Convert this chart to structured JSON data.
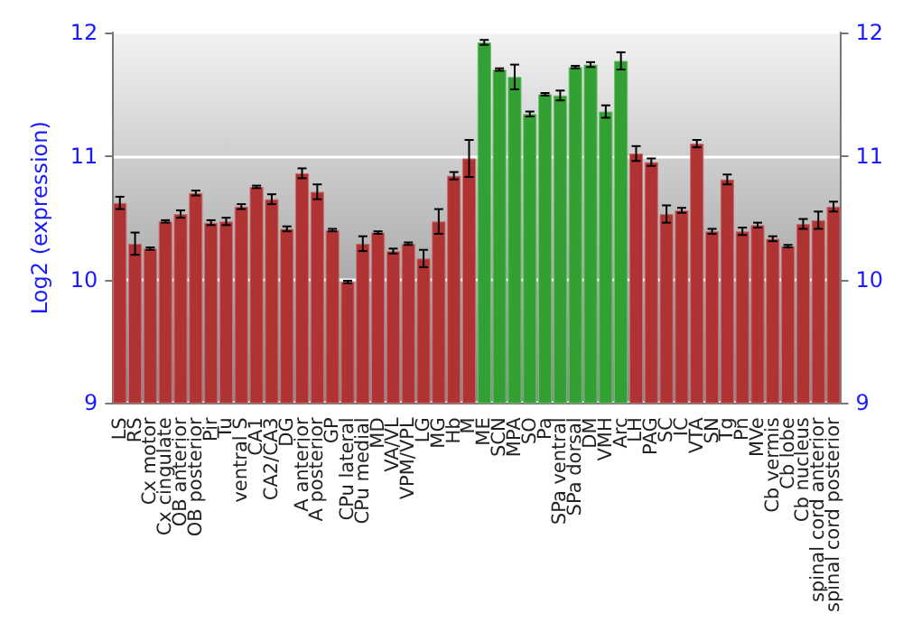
{
  "chart_data": {
    "type": "bar",
    "ylabel": "Log2 (expression)",
    "categories": [
      "LS",
      "RS",
      "Cx motor",
      "Cx cingulate",
      "OB anterior",
      "OB posterior",
      "Pir",
      "Tu",
      "ventral S",
      "CA1",
      "CA2/CA3",
      "DG",
      "A anterior",
      "A posterior",
      "GP",
      "CPu lateral",
      "CPu medial",
      "MD",
      "VA/VL",
      "VPM/VPL",
      "LG",
      "MG",
      "Hb",
      "M",
      "ME",
      "SCN",
      "MPA",
      "SO",
      "Pa",
      "SPa ventral",
      "SPa dorsal",
      "DM",
      "VMH",
      "Arc",
      "LH",
      "PAG",
      "SC",
      "IC",
      "VTA",
      "SN",
      "Tg",
      "Pn",
      "MVe",
      "Cb vermis",
      "Cb lobe",
      "Cb nucleus",
      "spinal cord anterior",
      "spinal cord posterior"
    ],
    "values": [
      10.62,
      10.29,
      10.25,
      10.47,
      10.53,
      10.7,
      10.46,
      10.47,
      10.59,
      10.75,
      10.65,
      10.41,
      10.86,
      10.71,
      10.4,
      9.98,
      10.29,
      10.38,
      10.23,
      10.29,
      10.17,
      10.47,
      10.84,
      10.98,
      11.92,
      11.7,
      11.64,
      11.34,
      11.5,
      11.49,
      11.72,
      11.74,
      11.36,
      11.77,
      11.02,
      10.95,
      10.53,
      10.56,
      11.1,
      10.39,
      10.81,
      10.39,
      10.44,
      10.33,
      10.27,
      10.45,
      10.48,
      10.59
    ],
    "errors": [
      0.05,
      0.09,
      0.01,
      0.01,
      0.03,
      0.02,
      0.02,
      0.03,
      0.02,
      0.01,
      0.04,
      0.02,
      0.04,
      0.06,
      0.01,
      0.01,
      0.06,
      0.01,
      0.02,
      0.01,
      0.07,
      0.1,
      0.03,
      0.15,
      0.02,
      0.01,
      0.1,
      0.02,
      0.01,
      0.04,
      0.01,
      0.02,
      0.05,
      0.07,
      0.06,
      0.03,
      0.07,
      0.02,
      0.03,
      0.02,
      0.04,
      0.03,
      0.02,
      0.02,
      0.01,
      0.04,
      0.07,
      0.04
    ],
    "colors": [
      "#b03333",
      "#b03333",
      "#b03333",
      "#b03333",
      "#b03333",
      "#b03333",
      "#b03333",
      "#b03333",
      "#b03333",
      "#b03333",
      "#b03333",
      "#b03333",
      "#b03333",
      "#b03333",
      "#b03333",
      "#b03333",
      "#b03333",
      "#b03333",
      "#b03333",
      "#b03333",
      "#b03333",
      "#b03333",
      "#b03333",
      "#b03333",
      "#33a033",
      "#33a033",
      "#33a033",
      "#33a033",
      "#33a033",
      "#33a033",
      "#33a033",
      "#33a033",
      "#33a033",
      "#33a033",
      "#b03333",
      "#b03333",
      "#b03333",
      "#b03333",
      "#b03333",
      "#b03333",
      "#b03333",
      "#b03333",
      "#b03333",
      "#b03333",
      "#b03333",
      "#b03333",
      "#b03333",
      "#b03333"
    ],
    "ylim": [
      9,
      12
    ],
    "yticks": [
      9,
      10,
      11,
      12
    ],
    "y2lim": [
      9,
      12
    ],
    "y2ticks": [
      9,
      10,
      11,
      12
    ],
    "grid": "y"
  }
}
